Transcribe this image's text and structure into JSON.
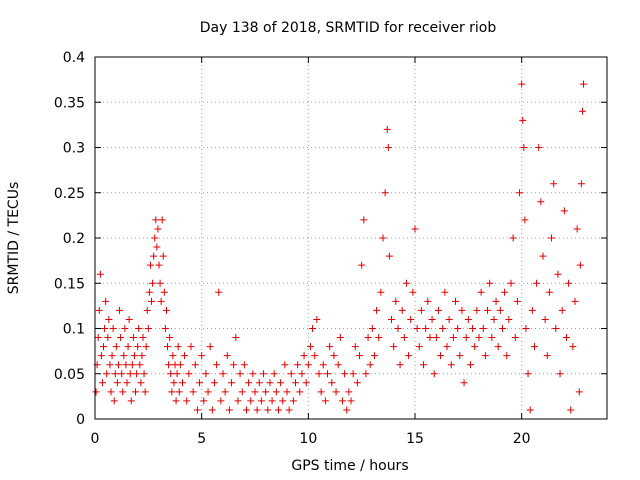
{
  "chart_data": {
    "type": "scatter",
    "title": "Day 138 of 2018, SRMTID for receiver riob",
    "xlabel": "GPS time / hours",
    "ylabel": "SRMTID / TECUs",
    "xlim": [
      0,
      24
    ],
    "ylim": [
      0,
      0.4
    ],
    "grid": true,
    "x_ticks": [
      0,
      5,
      10,
      15,
      20
    ],
    "x_tick_labels": [
      "0",
      "5",
      "10",
      "15",
      "20"
    ],
    "y_ticks": [
      0,
      0.05,
      0.1,
      0.15,
      0.2,
      0.25,
      0.3,
      0.35,
      0.4
    ],
    "y_tick_labels": [
      "0",
      "0.05",
      "0.1",
      "0.15",
      "0.2",
      "0.25",
      "0.3",
      "0.35",
      "0.4"
    ],
    "marker": "+",
    "series": [
      {
        "name": "SRMTID",
        "color": "#e00000",
        "points": [
          [
            0.05,
            0.03
          ],
          [
            0.1,
            0.06
          ],
          [
            0.15,
            0.09
          ],
          [
            0.2,
            0.12
          ],
          [
            0.25,
            0.16
          ],
          [
            0.3,
            0.07
          ],
          [
            0.35,
            0.04
          ],
          [
            0.4,
            0.08
          ],
          [
            0.45,
            0.1
          ],
          [
            0.5,
            0.13
          ],
          [
            0.55,
            0.05
          ],
          [
            0.6,
            0.09
          ],
          [
            0.65,
            0.11
          ],
          [
            0.7,
            0.06
          ],
          [
            0.75,
            0.03
          ],
          [
            0.8,
            0.07
          ],
          [
            0.85,
            0.1
          ],
          [
            0.9,
            0.02
          ],
          [
            0.95,
            0.05
          ],
          [
            1.0,
            0.08
          ],
          [
            1.05,
            0.04
          ],
          [
            1.1,
            0.06
          ],
          [
            1.15,
            0.12
          ],
          [
            1.2,
            0.09
          ],
          [
            1.25,
            0.05
          ],
          [
            1.3,
            0.03
          ],
          [
            1.35,
            0.07
          ],
          [
            1.4,
            0.1
          ],
          [
            1.45,
            0.06
          ],
          [
            1.5,
            0.04
          ],
          [
            1.55,
            0.08
          ],
          [
            1.6,
            0.11
          ],
          [
            1.65,
            0.05
          ],
          [
            1.7,
            0.02
          ],
          [
            1.75,
            0.06
          ],
          [
            1.8,
            0.09
          ],
          [
            1.85,
            0.07
          ],
          [
            1.9,
            0.03
          ],
          [
            1.95,
            0.05
          ],
          [
            2.0,
            0.08
          ],
          [
            2.05,
            0.1
          ],
          [
            2.1,
            0.06
          ],
          [
            2.15,
            0.04
          ],
          [
            2.2,
            0.07
          ],
          [
            2.25,
            0.09
          ],
          [
            2.3,
            0.05
          ],
          [
            2.35,
            0.03
          ],
          [
            2.4,
            0.08
          ],
          [
            2.45,
            0.12
          ],
          [
            2.5,
            0.1
          ],
          [
            2.55,
            0.14
          ],
          [
            2.6,
            0.17
          ],
          [
            2.65,
            0.13
          ],
          [
            2.7,
            0.15
          ],
          [
            2.75,
            0.18
          ],
          [
            2.8,
            0.2
          ],
          [
            2.85,
            0.22
          ],
          [
            2.9,
            0.19
          ],
          [
            2.95,
            0.21
          ],
          [
            3.0,
            0.17
          ],
          [
            3.05,
            0.15
          ],
          [
            3.1,
            0.13
          ],
          [
            3.15,
            0.22
          ],
          [
            3.2,
            0.18
          ],
          [
            3.25,
            0.14
          ],
          [
            3.3,
            0.1
          ],
          [
            3.35,
            0.12
          ],
          [
            3.4,
            0.08
          ],
          [
            3.45,
            0.06
          ],
          [
            3.5,
            0.09
          ],
          [
            3.55,
            0.05
          ],
          [
            3.6,
            0.03
          ],
          [
            3.65,
            0.07
          ],
          [
            3.7,
            0.04
          ],
          [
            3.75,
            0.06
          ],
          [
            3.8,
            0.02
          ],
          [
            3.85,
            0.05
          ],
          [
            3.9,
            0.08
          ],
          [
            3.95,
            0.03
          ],
          [
            4.0,
            0.06
          ],
          [
            4.1,
            0.04
          ],
          [
            4.2,
            0.07
          ],
          [
            4.3,
            0.02
          ],
          [
            4.4,
            0.05
          ],
          [
            4.5,
            0.08
          ],
          [
            4.6,
            0.03
          ],
          [
            4.7,
            0.06
          ],
          [
            4.8,
            0.01
          ],
          [
            4.9,
            0.04
          ],
          [
            5.0,
            0.07
          ],
          [
            5.1,
            0.02
          ],
          [
            5.2,
            0.05
          ],
          [
            5.3,
            0.03
          ],
          [
            5.4,
            0.08
          ],
          [
            5.5,
            0.01
          ],
          [
            5.6,
            0.04
          ],
          [
            5.7,
            0.06
          ],
          [
            5.8,
            0.14
          ],
          [
            5.9,
            0.02
          ],
          [
            6.0,
            0.05
          ],
          [
            6.1,
            0.03
          ],
          [
            6.2,
            0.07
          ],
          [
            6.3,
            0.01
          ],
          [
            6.4,
            0.04
          ],
          [
            6.5,
            0.06
          ],
          [
            6.6,
            0.09
          ],
          [
            6.7,
            0.02
          ],
          [
            6.8,
            0.05
          ],
          [
            6.9,
            0.03
          ],
          [
            7.0,
            0.06
          ],
          [
            7.1,
            0.01
          ],
          [
            7.2,
            0.04
          ],
          [
            7.3,
            0.02
          ],
          [
            7.4,
            0.05
          ],
          [
            7.5,
            0.03
          ],
          [
            7.6,
            0.01
          ],
          [
            7.7,
            0.04
          ],
          [
            7.8,
            0.02
          ],
          [
            7.9,
            0.05
          ],
          [
            8.0,
            0.03
          ],
          [
            8.1,
            0.01
          ],
          [
            8.2,
            0.04
          ],
          [
            8.3,
            0.02
          ],
          [
            8.4,
            0.05
          ],
          [
            8.5,
            0.03
          ],
          [
            8.6,
            0.01
          ],
          [
            8.7,
            0.04
          ],
          [
            8.8,
            0.02
          ],
          [
            8.9,
            0.06
          ],
          [
            9.0,
            0.03
          ],
          [
            9.1,
            0.01
          ],
          [
            9.2,
            0.05
          ],
          [
            9.3,
            0.02
          ],
          [
            9.4,
            0.04
          ],
          [
            9.5,
            0.06
          ],
          [
            9.6,
            0.03
          ],
          [
            9.7,
            0.05
          ],
          [
            9.8,
            0.07
          ],
          [
            9.9,
            0.04
          ],
          [
            10.0,
            0.06
          ],
          [
            10.1,
            0.08
          ],
          [
            10.2,
            0.1
          ],
          [
            10.3,
            0.07
          ],
          [
            10.4,
            0.11
          ],
          [
            10.5,
            0.05
          ],
          [
            10.6,
            0.03
          ],
          [
            10.7,
            0.06
          ],
          [
            10.8,
            0.02
          ],
          [
            10.9,
            0.05
          ],
          [
            11.0,
            0.08
          ],
          [
            11.1,
            0.04
          ],
          [
            11.2,
            0.07
          ],
          [
            11.3,
            0.03
          ],
          [
            11.4,
            0.06
          ],
          [
            11.5,
            0.09
          ],
          [
            11.6,
            0.02
          ],
          [
            11.7,
            0.05
          ],
          [
            11.8,
            0.01
          ],
          [
            11.9,
            0.03
          ],
          [
            12.0,
            0.02
          ],
          [
            12.1,
            0.05
          ],
          [
            12.2,
            0.08
          ],
          [
            12.3,
            0.04
          ],
          [
            12.4,
            0.07
          ],
          [
            12.5,
            0.17
          ],
          [
            12.6,
            0.22
          ],
          [
            12.7,
            0.05
          ],
          [
            12.8,
            0.09
          ],
          [
            12.9,
            0.06
          ],
          [
            13.0,
            0.1
          ],
          [
            13.1,
            0.07
          ],
          [
            13.2,
            0.12
          ],
          [
            13.3,
            0.09
          ],
          [
            13.4,
            0.14
          ],
          [
            13.5,
            0.2
          ],
          [
            13.6,
            0.25
          ],
          [
            13.7,
            0.32
          ],
          [
            13.75,
            0.3
          ],
          [
            13.8,
            0.18
          ],
          [
            13.9,
            0.11
          ],
          [
            14.0,
            0.08
          ],
          [
            14.1,
            0.13
          ],
          [
            14.2,
            0.1
          ],
          [
            14.3,
            0.06
          ],
          [
            14.4,
            0.12
          ],
          [
            14.5,
            0.09
          ],
          [
            14.6,
            0.15
          ],
          [
            14.7,
            0.07
          ],
          [
            14.8,
            0.11
          ],
          [
            14.9,
            0.14
          ],
          [
            15.0,
            0.21
          ],
          [
            15.1,
            0.1
          ],
          [
            15.2,
            0.08
          ],
          [
            15.3,
            0.12
          ],
          [
            15.4,
            0.06
          ],
          [
            15.5,
            0.1
          ],
          [
            15.6,
            0.13
          ],
          [
            15.7,
            0.09
          ],
          [
            15.8,
            0.11
          ],
          [
            15.9,
            0.05
          ],
          [
            16.0,
            0.09
          ],
          [
            16.1,
            0.12
          ],
          [
            16.2,
            0.07
          ],
          [
            16.3,
            0.1
          ],
          [
            16.4,
            0.14
          ],
          [
            16.5,
            0.08
          ],
          [
            16.6,
            0.11
          ],
          [
            16.7,
            0.06
          ],
          [
            16.8,
            0.09
          ],
          [
            16.9,
            0.13
          ],
          [
            17.0,
            0.1
          ],
          [
            17.1,
            0.07
          ],
          [
            17.2,
            0.12
          ],
          [
            17.3,
            0.04
          ],
          [
            17.4,
            0.09
          ],
          [
            17.5,
            0.11
          ],
          [
            17.6,
            0.06
          ],
          [
            17.7,
            0.1
          ],
          [
            17.8,
            0.08
          ],
          [
            17.9,
            0.12
          ],
          [
            18.0,
            0.09
          ],
          [
            18.1,
            0.14
          ],
          [
            18.2,
            0.1
          ],
          [
            18.3,
            0.07
          ],
          [
            18.4,
            0.12
          ],
          [
            18.5,
            0.15
          ],
          [
            18.6,
            0.09
          ],
          [
            18.7,
            0.11
          ],
          [
            18.8,
            0.13
          ],
          [
            18.9,
            0.08
          ],
          [
            19.0,
            0.12
          ],
          [
            19.1,
            0.1
          ],
          [
            19.2,
            0.14
          ],
          [
            19.3,
            0.07
          ],
          [
            19.4,
            0.11
          ],
          [
            19.5,
            0.15
          ],
          [
            19.6,
            0.2
          ],
          [
            19.7,
            0.09
          ],
          [
            19.8,
            0.13
          ],
          [
            19.9,
            0.25
          ],
          [
            20.0,
            0.37
          ],
          [
            20.05,
            0.33
          ],
          [
            20.1,
            0.3
          ],
          [
            20.15,
            0.22
          ],
          [
            20.2,
            0.1
          ],
          [
            20.3,
            0.05
          ],
          [
            20.4,
            0.01
          ],
          [
            20.5,
            0.12
          ],
          [
            20.6,
            0.08
          ],
          [
            20.7,
            0.15
          ],
          [
            20.8,
            0.3
          ],
          [
            20.9,
            0.24
          ],
          [
            21.0,
            0.18
          ],
          [
            21.1,
            0.11
          ],
          [
            21.2,
            0.07
          ],
          [
            21.3,
            0.14
          ],
          [
            21.4,
            0.2
          ],
          [
            21.5,
            0.26
          ],
          [
            21.6,
            0.1
          ],
          [
            21.7,
            0.16
          ],
          [
            21.8,
            0.05
          ],
          [
            21.9,
            0.12
          ],
          [
            22.0,
            0.23
          ],
          [
            22.1,
            0.09
          ],
          [
            22.2,
            0.15
          ],
          [
            22.3,
            0.01
          ],
          [
            22.4,
            0.08
          ],
          [
            22.5,
            0.13
          ],
          [
            22.6,
            0.21
          ],
          [
            22.7,
            0.03
          ],
          [
            22.75,
            0.17
          ],
          [
            22.8,
            0.26
          ],
          [
            22.85,
            0.34
          ],
          [
            22.9,
            0.37
          ]
        ]
      }
    ]
  }
}
